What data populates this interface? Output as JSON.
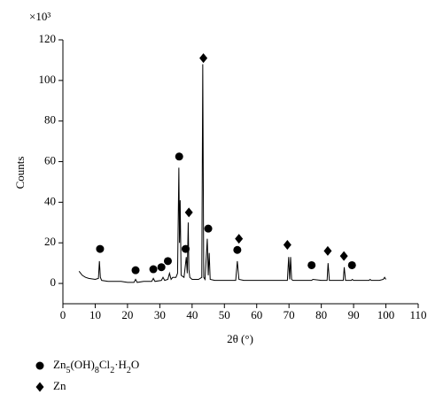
{
  "chart_data": {
    "type": "line",
    "y_unit": "×10³",
    "ylabel": "Counts",
    "xlabel": "2θ (°)",
    "xlim": [
      0,
      110
    ],
    "xticks": [
      0,
      10,
      20,
      30,
      40,
      50,
      60,
      70,
      80,
      90,
      100,
      110
    ],
    "ylim": [
      -10,
      120
    ],
    "yticks": [
      0,
      20,
      40,
      60,
      80,
      100,
      120
    ],
    "series": [
      {
        "color": "#000000",
        "marker": "none",
        "x": [
          5,
          6,
          7,
          8,
          10,
          11,
          11.3,
          11.6,
          12,
          14,
          16,
          18,
          20,
          22,
          22.5,
          23,
          25,
          27.5,
          28,
          28.5,
          30.5,
          31,
          31.5,
          32.5,
          33,
          33.5,
          34,
          35,
          35.5,
          35.9,
          36.1,
          36.3,
          36.6,
          37.5,
          38.2,
          38.5,
          38.8,
          39,
          39.3,
          40,
          42,
          43,
          43.3,
          43.6,
          44,
          44.7,
          45,
          45.3,
          45.6,
          47,
          50,
          53.5,
          54,
          54.5,
          56,
          60,
          65,
          69.5,
          69.9,
          70.2,
          70.5,
          70.8,
          71.2,
          75,
          77,
          77.4,
          80,
          81.8,
          82.1,
          82.5,
          85,
          86.8,
          87.1,
          87.5,
          89.3,
          89.6,
          90,
          94.8,
          95.1,
          95.5,
          98,
          99.2,
          99.6,
          100
        ],
        "values": [
          6,
          4,
          3,
          2.5,
          2,
          2.5,
          11,
          3,
          1.5,
          1,
          1,
          1,
          0.5,
          0.5,
          2,
          0.5,
          1,
          1,
          2.5,
          1,
          1.5,
          3,
          1.5,
          2,
          5,
          2,
          3,
          3,
          5,
          57,
          20,
          41,
          4,
          3,
          13,
          5,
          30,
          7,
          3,
          2,
          2,
          3,
          108,
          3,
          2,
          22,
          4,
          15,
          2,
          1.5,
          1.5,
          1.5,
          11,
          2,
          1.5,
          1.5,
          1.5,
          1.5,
          13,
          2,
          13,
          2,
          1.5,
          1.5,
          1.5,
          2,
          1.5,
          1.5,
          10,
          1.5,
          1.5,
          1.5,
          8,
          1.5,
          1.5,
          2,
          1.5,
          1.5,
          2,
          1.5,
          1.5,
          2,
          3,
          2
        ]
      },
      {
        "name": "Zn5(OH)8Cl2·H2O",
        "color": "#000000",
        "marker": "circle",
        "x": [
          11.5,
          22.5,
          28,
          30.5,
          32.5,
          36,
          38,
          45,
          54,
          77,
          89.5
        ],
        "values": [
          17,
          6.5,
          7,
          8,
          11,
          62.5,
          17,
          27,
          16.5,
          9,
          9
        ]
      },
      {
        "name": "Zn",
        "color": "#000000",
        "marker": "diamond",
        "x": [
          39,
          43.5,
          54.5,
          69.5,
          82,
          87
        ],
        "values": [
          35,
          111,
          22,
          19,
          16,
          13.5
        ]
      }
    ]
  }
}
